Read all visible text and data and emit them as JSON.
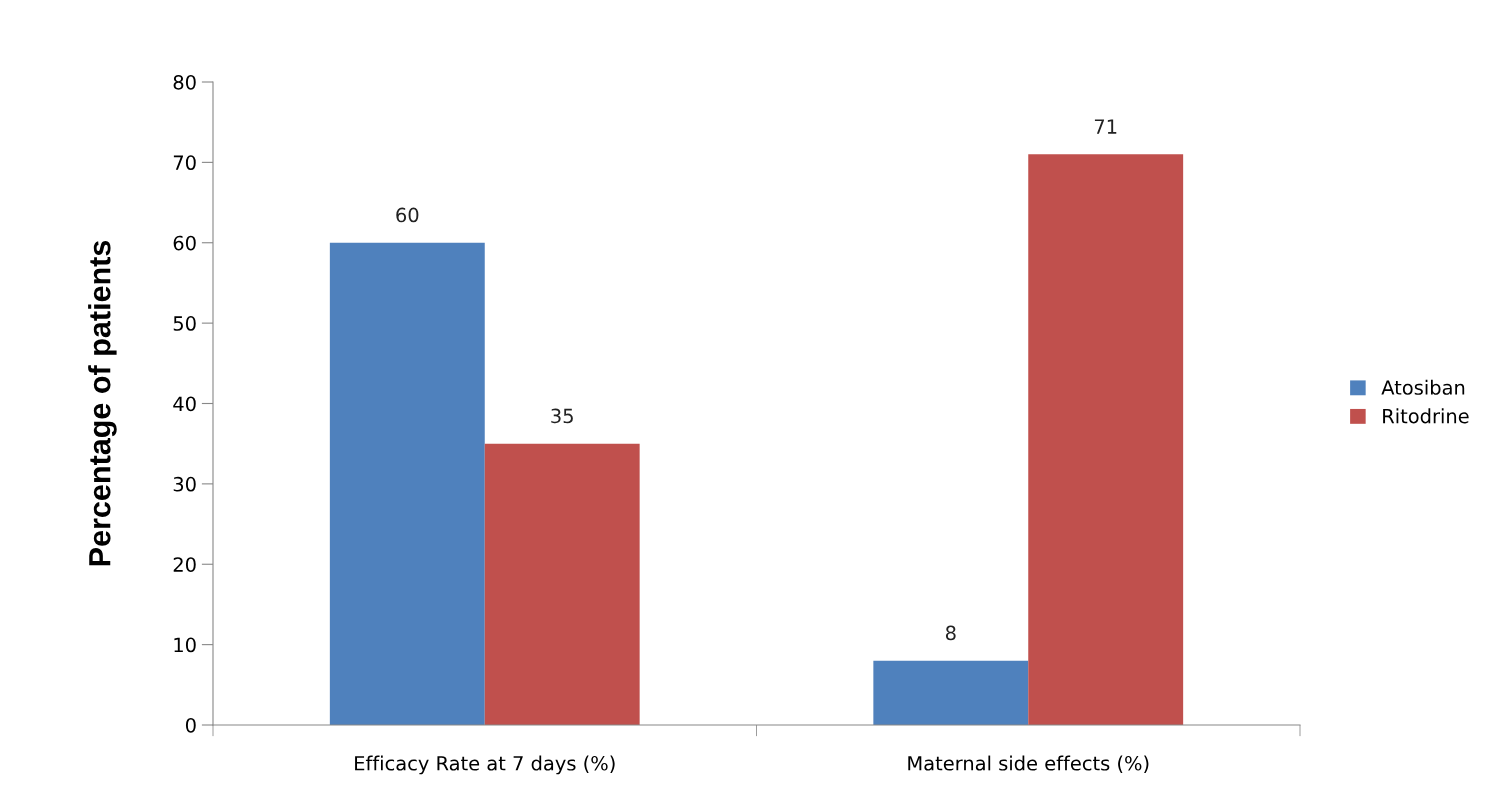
{
  "chart_data": {
    "type": "bar",
    "ylabel": "Percentage of patients",
    "categories": [
      "Efficacy Rate at 7 days (%)",
      "Maternal side effects (%)"
    ],
    "series": [
      {
        "name": "Atosiban",
        "color": "#4f81bd",
        "values": [
          60,
          8
        ]
      },
      {
        "name": "Ritodrine",
        "color": "#c0504d",
        "values": [
          35,
          71
        ]
      }
    ],
    "ylim": [
      0,
      80
    ],
    "yticks": [
      0,
      10,
      20,
      30,
      40,
      50,
      60,
      70,
      80
    ],
    "data_labels": true,
    "legend": "right",
    "grid": false
  }
}
